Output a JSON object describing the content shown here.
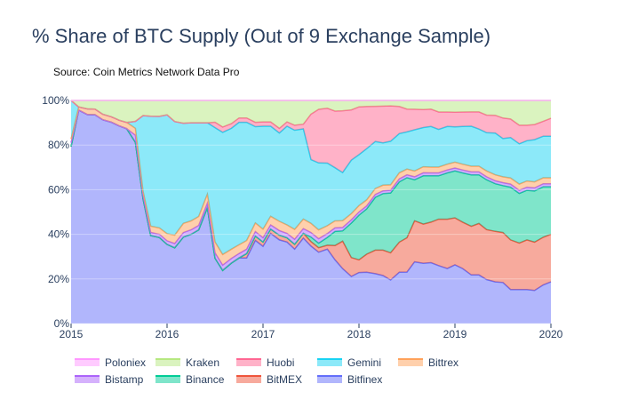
{
  "title": "% Share of BTC Supply (Out of 9 Exchange Sample)",
  "source": "Source: Coin Metrics Network Data Pro",
  "chart_data": {
    "type": "area",
    "stacked": true,
    "normalized": true,
    "title": "% Share of BTC Supply (Out of 9 Exchange Sample)",
    "xlabel": "",
    "ylabel": "",
    "xlim": [
      2015,
      2020
    ],
    "ylim": [
      0,
      100
    ],
    "x_ticks": [
      {
        "value": 2015,
        "label": "2015"
      },
      {
        "value": 2016,
        "label": "2016"
      },
      {
        "value": 2017,
        "label": "2017"
      },
      {
        "value": 2018,
        "label": "2018"
      },
      {
        "value": 2019,
        "label": "2019"
      },
      {
        "value": 2020,
        "label": "2020"
      }
    ],
    "y_ticks": [
      {
        "value": 0,
        "label": "0%"
      },
      {
        "value": 20,
        "label": "20%"
      },
      {
        "value": 40,
        "label": "40%"
      },
      {
        "value": 60,
        "label": "60%"
      },
      {
        "value": 80,
        "label": "80%"
      },
      {
        "value": 100,
        "label": "100%"
      }
    ],
    "legend_position": "bottom",
    "x": [
      2015.0,
      2015.08,
      2015.17,
      2015.25,
      2015.33,
      2015.42,
      2015.5,
      2015.58,
      2015.67,
      2015.75,
      2015.83,
      2015.92,
      2016.0,
      2016.08,
      2016.17,
      2016.25,
      2016.33,
      2016.42,
      2016.5,
      2016.58,
      2016.67,
      2016.75,
      2016.83,
      2016.92,
      2017.0,
      2017.08,
      2017.17,
      2017.25,
      2017.33,
      2017.42,
      2017.5,
      2017.58,
      2017.67,
      2017.75,
      2017.83,
      2017.92,
      2018.0,
      2018.08,
      2018.17,
      2018.25,
      2018.33,
      2018.42,
      2018.5,
      2018.58,
      2018.67,
      2018.75,
      2018.83,
      2018.92,
      2019.0,
      2019.08,
      2019.17,
      2019.25,
      2019.33,
      2019.42,
      2019.5,
      2019.58,
      2019.67,
      2019.75,
      2019.83,
      2019.92,
      2020.0
    ],
    "series": [
      {
        "name": "Bitfinex",
        "color": "#636efa",
        "values": [
          46,
          66,
          74,
          73,
          74,
          74,
          70,
          62,
          52,
          33,
          28,
          27,
          22,
          18,
          19,
          20,
          21,
          26,
          12,
          10,
          13,
          15,
          15,
          19,
          18,
          21,
          18,
          19,
          15,
          18,
          17,
          16,
          19,
          18,
          16,
          15,
          16,
          17,
          17,
          17,
          16,
          17,
          18,
          21,
          20,
          21,
          20,
          19,
          20,
          19,
          17,
          17,
          15,
          14,
          14,
          11,
          11,
          11,
          11,
          13,
          14
        ]
      },
      {
        "name": "BitMEX",
        "color": "#ef553b",
        "values": [
          0,
          0,
          0,
          0,
          0,
          0,
          0,
          0,
          0,
          0,
          0,
          0,
          0,
          0,
          0,
          0,
          0,
          0,
          0,
          0,
          0,
          0,
          1,
          1,
          1,
          1,
          1,
          1,
          1,
          1,
          1,
          1,
          1,
          4,
          8,
          6,
          4,
          6,
          8,
          9,
          10,
          10,
          12,
          14,
          13,
          14,
          16,
          17,
          16,
          16,
          17,
          18,
          17,
          17,
          17,
          16,
          15,
          16,
          16,
          16,
          16
        ]
      },
      {
        "name": "Binance",
        "color": "#00cc96",
        "values": [
          0,
          0,
          0,
          0,
          0,
          0,
          0,
          0,
          0,
          0,
          0,
          0,
          0,
          0,
          0,
          0,
          0,
          0,
          0,
          0,
          0,
          0,
          0,
          0,
          0,
          0,
          0,
          0,
          0,
          0,
          1,
          1,
          2,
          4,
          3,
          11,
          14,
          15,
          18,
          20,
          22,
          20,
          21,
          14,
          16,
          16,
          15,
          16,
          16,
          17,
          18,
          17,
          17,
          16,
          16,
          17,
          16,
          16,
          17,
          17,
          16
        ]
      },
      {
        "name": "Bistamp",
        "color": "#ab63fa",
        "values": [
          1,
          0,
          0,
          0,
          0,
          0,
          0,
          0,
          2,
          1,
          1,
          1,
          1,
          1,
          1,
          1,
          1,
          1,
          1,
          1,
          1,
          1,
          1,
          1,
          1,
          1,
          1,
          1,
          1,
          1,
          1,
          1,
          1,
          1,
          1,
          1,
          1,
          1,
          1,
          1,
          1,
          1,
          1,
          1,
          1,
          1,
          1,
          1,
          1,
          1,
          1,
          1,
          1,
          1,
          1,
          1,
          1,
          1,
          1,
          1,
          1
        ]
      },
      {
        "name": "Bittrex",
        "color": "#ffa15a",
        "values": [
          1,
          1,
          2,
          2,
          2,
          2,
          2,
          2,
          2,
          1,
          2,
          2,
          2,
          2,
          2,
          2,
          2,
          2,
          2,
          2,
          2,
          2,
          2,
          2,
          2,
          2,
          2,
          2,
          2,
          2,
          2,
          2,
          2,
          2,
          2,
          2,
          2,
          2,
          2,
          2,
          2,
          2,
          2,
          2,
          2,
          2,
          2,
          2,
          2,
          2,
          2,
          2,
          2,
          2,
          2,
          2,
          2,
          2,
          2,
          2,
          2
        ]
      },
      {
        "name": "Gemini",
        "color": "#19d3f3",
        "values": [
          10,
          0,
          0,
          0,
          0,
          0,
          0,
          0,
          2,
          20,
          35,
          35,
          33,
          27,
          22,
          22,
          21,
          16,
          21,
          23,
          26,
          28,
          27,
          22,
          24,
          21,
          19,
          23,
          20,
          19,
          14,
          15,
          16,
          15,
          14,
          17,
          16,
          17,
          16,
          15,
          16,
          13,
          13,
          14,
          13,
          14,
          13,
          13,
          12,
          13,
          14,
          13,
          13,
          14,
          13,
          13,
          13,
          13,
          14,
          14,
          14
        ]
      },
      {
        "name": "Huobi",
        "color": "#ff6692",
        "values": [
          0,
          0,
          0,
          0,
          0,
          0,
          0,
          0,
          0,
          0,
          0,
          0,
          0,
          0,
          0,
          0,
          0,
          0,
          1,
          1,
          1,
          1,
          1,
          1,
          1,
          1,
          1,
          1,
          1,
          1,
          10,
          12,
          14,
          16,
          18,
          16,
          15,
          14,
          12,
          13,
          13,
          9,
          8,
          7,
          6,
          6,
          6,
          5,
          5,
          5,
          5,
          6,
          6,
          6,
          7,
          6,
          6,
          5,
          5,
          5,
          6
        ]
      },
      {
        "name": "Kraken",
        "color": "#b6e880",
        "values": [
          0,
          2,
          3,
          3,
          5,
          6,
          7,
          7,
          6,
          4,
          5,
          5,
          4,
          5,
          5,
          5,
          5,
          5,
          4,
          5,
          5,
          4,
          4,
          5,
          5,
          5,
          6,
          5,
          5,
          5,
          3,
          2,
          2,
          3,
          3,
          3,
          2,
          2,
          2,
          2,
          2,
          2,
          3,
          3,
          3,
          3,
          4,
          4,
          4,
          4,
          4,
          4,
          5,
          5,
          6,
          6,
          8,
          8,
          8,
          7,
          6
        ]
      },
      {
        "name": "Poloniex",
        "color": "#ff97ff",
        "values": [
          0,
          0,
          0,
          0,
          0,
          0,
          0,
          0,
          0,
          0,
          0,
          0,
          0,
          0,
          0,
          0,
          0,
          0,
          0,
          0,
          0,
          0,
          0,
          0,
          0,
          0,
          0,
          0,
          0,
          0,
          0,
          0,
          0,
          0,
          0,
          0,
          0,
          0,
          0,
          0,
          0,
          0,
          0,
          0,
          0,
          0,
          0,
          0,
          0,
          0,
          0,
          0,
          0,
          0,
          0,
          0,
          0,
          0,
          0,
          0,
          0
        ]
      }
    ],
    "legend_order": [
      "Poloniex",
      "Kraken",
      "Huobi",
      "Gemini",
      "Bittrex",
      "Bistamp",
      "Binance",
      "BitMEX",
      "Bitfinex"
    ]
  }
}
